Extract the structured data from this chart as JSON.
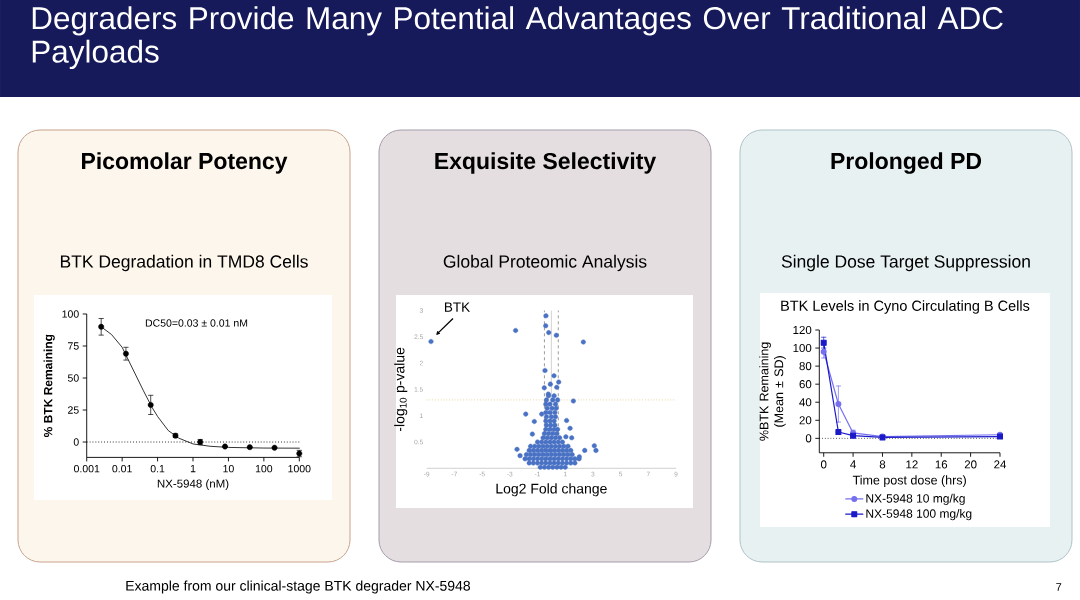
{
  "chart_data": [
    {
      "type": "other",
      "title": "Degraders Provide Many Potential Advantages Over Traditional ADC Payloads",
      "annotations": [
        "Example from our clinical-stage BTK degrader NX-5948",
        "7"
      ]
    },
    {
      "type": "scatter",
      "title": "Picomolar Potency",
      "subtitle": "BTK Degradation in TMD8 Cells",
      "xlabel": "NX-5948 (nM)",
      "ylabel": "% BTK Remaining",
      "annotations": [
        "DC50=0.03 ± 0.01 nM"
      ],
      "log": "x",
      "xlim": [
        0.001,
        1000
      ],
      "xticks": [
        0.001,
        0.01,
        0.1,
        1,
        10,
        100,
        1000
      ],
      "ylim": [
        -12,
        100
      ],
      "yticks": [
        0,
        25,
        50,
        75,
        100
      ],
      "ref_lines": [
        {
          "axis": "y",
          "value": 0,
          "line_style": "dotted",
          "color": "#000000"
        }
      ],
      "series": [
        {
          "type": "scatter",
          "marker": "circle",
          "color": "#000000",
          "x": [
            0.00256,
            0.0128,
            0.064,
            0.32,
            1.6,
            8,
            40,
            200,
            1000
          ],
          "values": [
            90,
            69,
            29,
            5,
            0,
            -3.5,
            -4,
            -4.5,
            -9
          ],
          "errors": [
            6.5,
            5,
            7.5,
            1.5,
            2,
            null,
            null,
            null,
            2.5
          ]
        },
        {
          "type": "line",
          "marker": "none",
          "color": "#000000",
          "x": [
            0.00256,
            0.005,
            0.01,
            0.02,
            0.04,
            0.07,
            0.1,
            0.2,
            0.4,
            1,
            3,
            10,
            100,
            1000
          ],
          "values": [
            90,
            84,
            74,
            57,
            40,
            27,
            20,
            9,
            3,
            -1.5,
            -3.3,
            -4.2,
            -4.7,
            -4.8
          ]
        }
      ]
    },
    {
      "type": "scatter",
      "title": "Exquisite Selectivity",
      "subtitle": "Global Proteomic Analysis",
      "xlabel": "Log2 Fold change",
      "ylabel": "-log$_{10}$ p-value",
      "xlim": [
        -9,
        9
      ],
      "xticks": [
        -9,
        -7,
        -5,
        -3,
        -1,
        1,
        3,
        5,
        7,
        9
      ],
      "ylim": [
        0,
        3
      ],
      "yticks": [
        0.5,
        1,
        1.5,
        2,
        2.5,
        3
      ],
      "ref_lines": [
        {
          "axis": "x",
          "value": 0,
          "line_style": "solid",
          "color": "#c8c8c8"
        },
        {
          "axis": "x",
          "value": -0.5,
          "line_style": "dashed",
          "color": "#808080"
        },
        {
          "axis": "x",
          "value": 0.5,
          "line_style": "dashed",
          "color": "#808080"
        },
        {
          "axis": "y",
          "value": 1.3,
          "line_style": "dotted",
          "color": "#d8c46a"
        }
      ],
      "annotations": [
        {
          "text": "BTK",
          "x": -8.69,
          "y": 2.41
        }
      ],
      "series": [
        {
          "marker": "circle",
          "color": "#4a72c4",
          "x": [
            -8.69,
            -2.58,
            2.31,
            -0.39,
            -0.41,
            -0.19,
            0.36,
            -0.46,
            0.19,
            -0.51,
            -0.07,
            0.53,
            0.39,
            -0.22,
            1.59,
            -1.85,
            -0.7,
            -1.23,
            1.1,
            -1.37,
            1.35,
            1.05,
            1.47,
            3.1,
            3.22,
            2.41,
            -2.48,
            -2.26,
            2.02,
            -0.8,
            -0.5,
            -0.2,
            0.1,
            0.4,
            0.7,
            1.0,
            -1.6,
            -1.3,
            -1.0,
            -0.7,
            -0.4,
            -0.1,
            0.2,
            0.5,
            0.8,
            1.1,
            1.4,
            1.7,
            -1.9,
            -1.6,
            -1.3,
            -1.0,
            -0.7,
            -0.4,
            -0.1,
            0.2,
            0.5,
            0.8,
            1.1,
            1.4,
            1.7,
            2.0,
            -1.8,
            -1.5,
            -1.2,
            -0.9,
            -0.6,
            -0.3,
            0,
            0.3,
            0.6,
            0.9,
            1.2,
            1.5,
            -1.6,
            -1.3,
            -1.0,
            -0.7,
            -0.4,
            -0.1,
            0.2,
            0.5,
            0.8,
            1.1,
            1.4,
            -1.5,
            -1.2,
            -0.9,
            -0.6,
            -0.3,
            0,
            0.3,
            0.6,
            0.9,
            1.2,
            -1.0,
            -0.7,
            -0.4,
            -0.1,
            0.2,
            0.5,
            0.8,
            -0.6,
            -0.3,
            0,
            0.3,
            0.6,
            -0.5,
            -0.2,
            0.1,
            0.4,
            -0.4,
            -0.1,
            0.2,
            0.45,
            -0.35,
            -0.05,
            0.25,
            -0.4,
            -0.1,
            0.2,
            -0.35,
            0,
            0.3,
            -0.4,
            -0.1,
            0.25,
            -0.3,
            0.05,
            0.35,
            -0.4,
            -0.1,
            0.3,
            -0.35,
            0.1,
            0.45,
            -0.2,
            0.2
          ],
          "values": [
            2.41,
            2.62,
            2.4,
            2.9,
            2.71,
            2.58,
            2.53,
            1.86,
            1.76,
            1.53,
            1.6,
            1.64,
            1.54,
            1.41,
            1.28,
            1.03,
            1.03,
            0.89,
            0.91,
            0.65,
            0.76,
            0.6,
            0.58,
            0.43,
            0.34,
            0.34,
            0.36,
            0.24,
            0.22,
            0.02,
            0.02,
            0.02,
            0.02,
            0.02,
            0.02,
            0.02,
            0.1,
            0.1,
            0.1,
            0.1,
            0.1,
            0.1,
            0.1,
            0.1,
            0.1,
            0.1,
            0.1,
            0.1,
            0.18,
            0.18,
            0.18,
            0.18,
            0.18,
            0.18,
            0.18,
            0.18,
            0.18,
            0.18,
            0.18,
            0.18,
            0.18,
            0.18,
            0.26,
            0.26,
            0.26,
            0.26,
            0.26,
            0.26,
            0.26,
            0.26,
            0.26,
            0.26,
            0.26,
            0.26,
            0.34,
            0.34,
            0.34,
            0.34,
            0.34,
            0.34,
            0.34,
            0.34,
            0.34,
            0.34,
            0.34,
            0.42,
            0.42,
            0.42,
            0.42,
            0.42,
            0.42,
            0.42,
            0.42,
            0.42,
            0.42,
            0.5,
            0.5,
            0.5,
            0.5,
            0.5,
            0.5,
            0.5,
            0.58,
            0.58,
            0.58,
            0.58,
            0.58,
            0.66,
            0.66,
            0.66,
            0.66,
            0.74,
            0.74,
            0.74,
            0.74,
            0.82,
            0.82,
            0.82,
            0.9,
            0.9,
            0.9,
            0.98,
            0.98,
            0.98,
            1.06,
            1.06,
            1.06,
            1.14,
            1.14,
            1.14,
            1.22,
            1.22,
            1.22,
            1.3,
            1.3,
            1.3,
            1.38,
            1.38
          ]
        }
      ]
    },
    {
      "type": "line",
      "title": "Prolonged PD",
      "subtitle": "Single Dose Target Suppression",
      "annotations": [
        "BTK Levels in Cyno Circulating B Cells"
      ],
      "xlabel": "Time post dose (hrs)",
      "ylabel": "%BTK Remaining (Mean ± SD)",
      "x": [
        0,
        2,
        4,
        8,
        24
      ],
      "xlim": [
        -0.6,
        24
      ],
      "xticks": [
        0,
        4,
        8,
        12,
        16,
        20,
        24
      ],
      "ylim": [
        -16,
        120
      ],
      "yticks": [
        0,
        20,
        40,
        60,
        80,
        100,
        120
      ],
      "ref_lines": [
        {
          "axis": "y",
          "value": 0,
          "line_style": "dotted",
          "color": "#000000"
        }
      ],
      "legend": "bottom",
      "series": [
        {
          "name": "NX-5948 10 mg/kg",
          "color": "#7570f0",
          "marker": "circle",
          "values": [
            96,
            38,
            6,
            2,
            4
          ],
          "errors": [
            7,
            20,
            3,
            null,
            null
          ]
        },
        {
          "name": "NX-5948 100 mg/kg",
          "color": "#1a1ac8",
          "marker": "square",
          "values": [
            106,
            7,
            3,
            1,
            2
          ],
          "errors": [
            6,
            null,
            null,
            null,
            null
          ]
        }
      ]
    }
  ]
}
